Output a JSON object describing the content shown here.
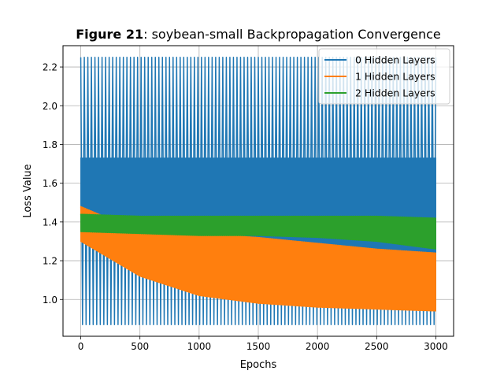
{
  "chart_data": {
    "type": "line",
    "title_prefix": "Figure 21",
    "title_rest": ": soybean-small Backpropagation Convergence",
    "xlabel": "Epochs",
    "ylabel": "Loss Value",
    "xlim": [
      -150,
      3150
    ],
    "ylim": [
      0.81,
      2.31
    ],
    "x_ticks": [
      0,
      500,
      1000,
      1500,
      2000,
      2500,
      3000
    ],
    "y_ticks": [
      1.0,
      1.2,
      1.4,
      1.6,
      1.8,
      2.0,
      2.2
    ],
    "x_tick_labels": [
      "0",
      "500",
      "1000",
      "1500",
      "2000",
      "2500",
      "3000"
    ],
    "y_tick_labels": [
      "1.0",
      "1.2",
      "1.4",
      "1.6",
      "1.8",
      "2.0",
      "2.2"
    ],
    "grid": true,
    "legend_position": "top-right",
    "series": [
      {
        "name": "0 Hidden Layers",
        "color": "#1f77b4",
        "x": [
          0,
          500,
          1000,
          1500,
          2000,
          2500,
          3000
        ],
        "upper": [
          2.25,
          2.25,
          2.25,
          2.25,
          2.25,
          2.25,
          2.25
        ],
        "lower": [
          0.87,
          0.87,
          0.87,
          0.87,
          0.87,
          0.87,
          0.87
        ],
        "inner_upper": [
          1.73,
          1.73,
          1.73,
          1.73,
          1.73,
          1.73,
          1.73
        ],
        "inner_lower": [
          1.35,
          1.16,
          1.07,
          1.01,
          0.98,
          0.96,
          0.94
        ]
      },
      {
        "name": "1 Hidden Layers",
        "color": "#ff7f0e",
        "x": [
          0,
          500,
          1000,
          1500,
          2000,
          2500,
          3000
        ],
        "upper": [
          1.48,
          1.35,
          1.34,
          1.32,
          1.29,
          1.26,
          1.24
        ],
        "lower": [
          1.3,
          1.12,
          1.02,
          0.98,
          0.96,
          0.95,
          0.94
        ]
      },
      {
        "name": "2 Hidden Layers",
        "color": "#2ca02c",
        "x": [
          0,
          500,
          1000,
          1500,
          2000,
          2500,
          3000
        ],
        "upper": [
          1.44,
          1.43,
          1.43,
          1.43,
          1.43,
          1.43,
          1.42
        ],
        "lower": [
          1.35,
          1.34,
          1.33,
          1.33,
          1.32,
          1.3,
          1.26
        ]
      }
    ]
  }
}
